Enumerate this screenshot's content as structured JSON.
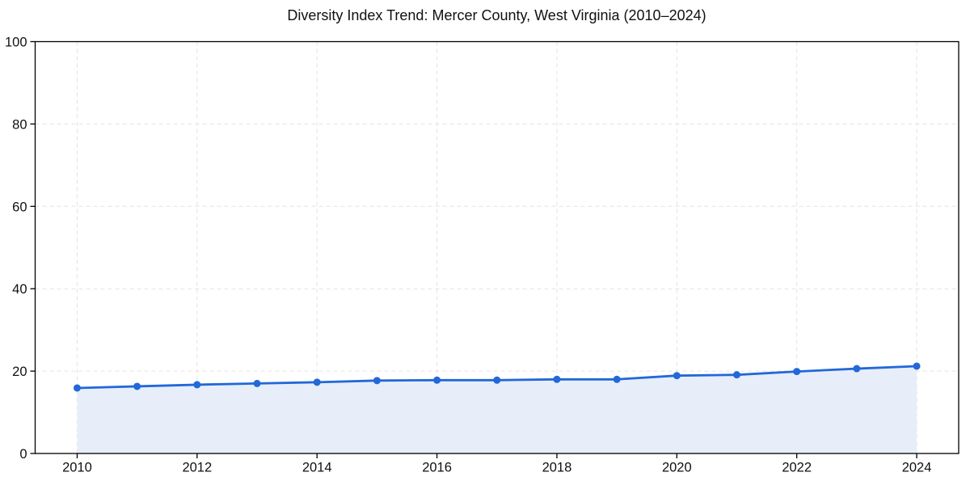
{
  "chart_data": {
    "type": "line",
    "title": "Diversity Index Trend: Mercer County, West Virginia (2010–2024)",
    "x": [
      2010,
      2011,
      2012,
      2013,
      2014,
      2015,
      2016,
      2017,
      2018,
      2019,
      2020,
      2021,
      2022,
      2023,
      2024
    ],
    "values": [
      15.9,
      16.3,
      16.7,
      17.0,
      17.3,
      17.7,
      17.8,
      17.8,
      18.0,
      18.0,
      18.9,
      19.1,
      19.9,
      20.6,
      21.2
    ],
    "xlabel": "",
    "ylabel": "",
    "xlim": [
      2009.3,
      2024.7
    ],
    "ylim": [
      0,
      100
    ],
    "xticks": [
      2010,
      2012,
      2014,
      2016,
      2018,
      2020,
      2022,
      2024
    ],
    "yticks": [
      0,
      20,
      40,
      60,
      80,
      100
    ],
    "grid": "dashed",
    "legend": "none",
    "marker": "circle",
    "area_fill": true,
    "colors": {
      "line": "#2268d8",
      "fill": "#e7eefa",
      "grid": "#e3e3e3",
      "axis": "#000000",
      "text": "#111111"
    }
  }
}
